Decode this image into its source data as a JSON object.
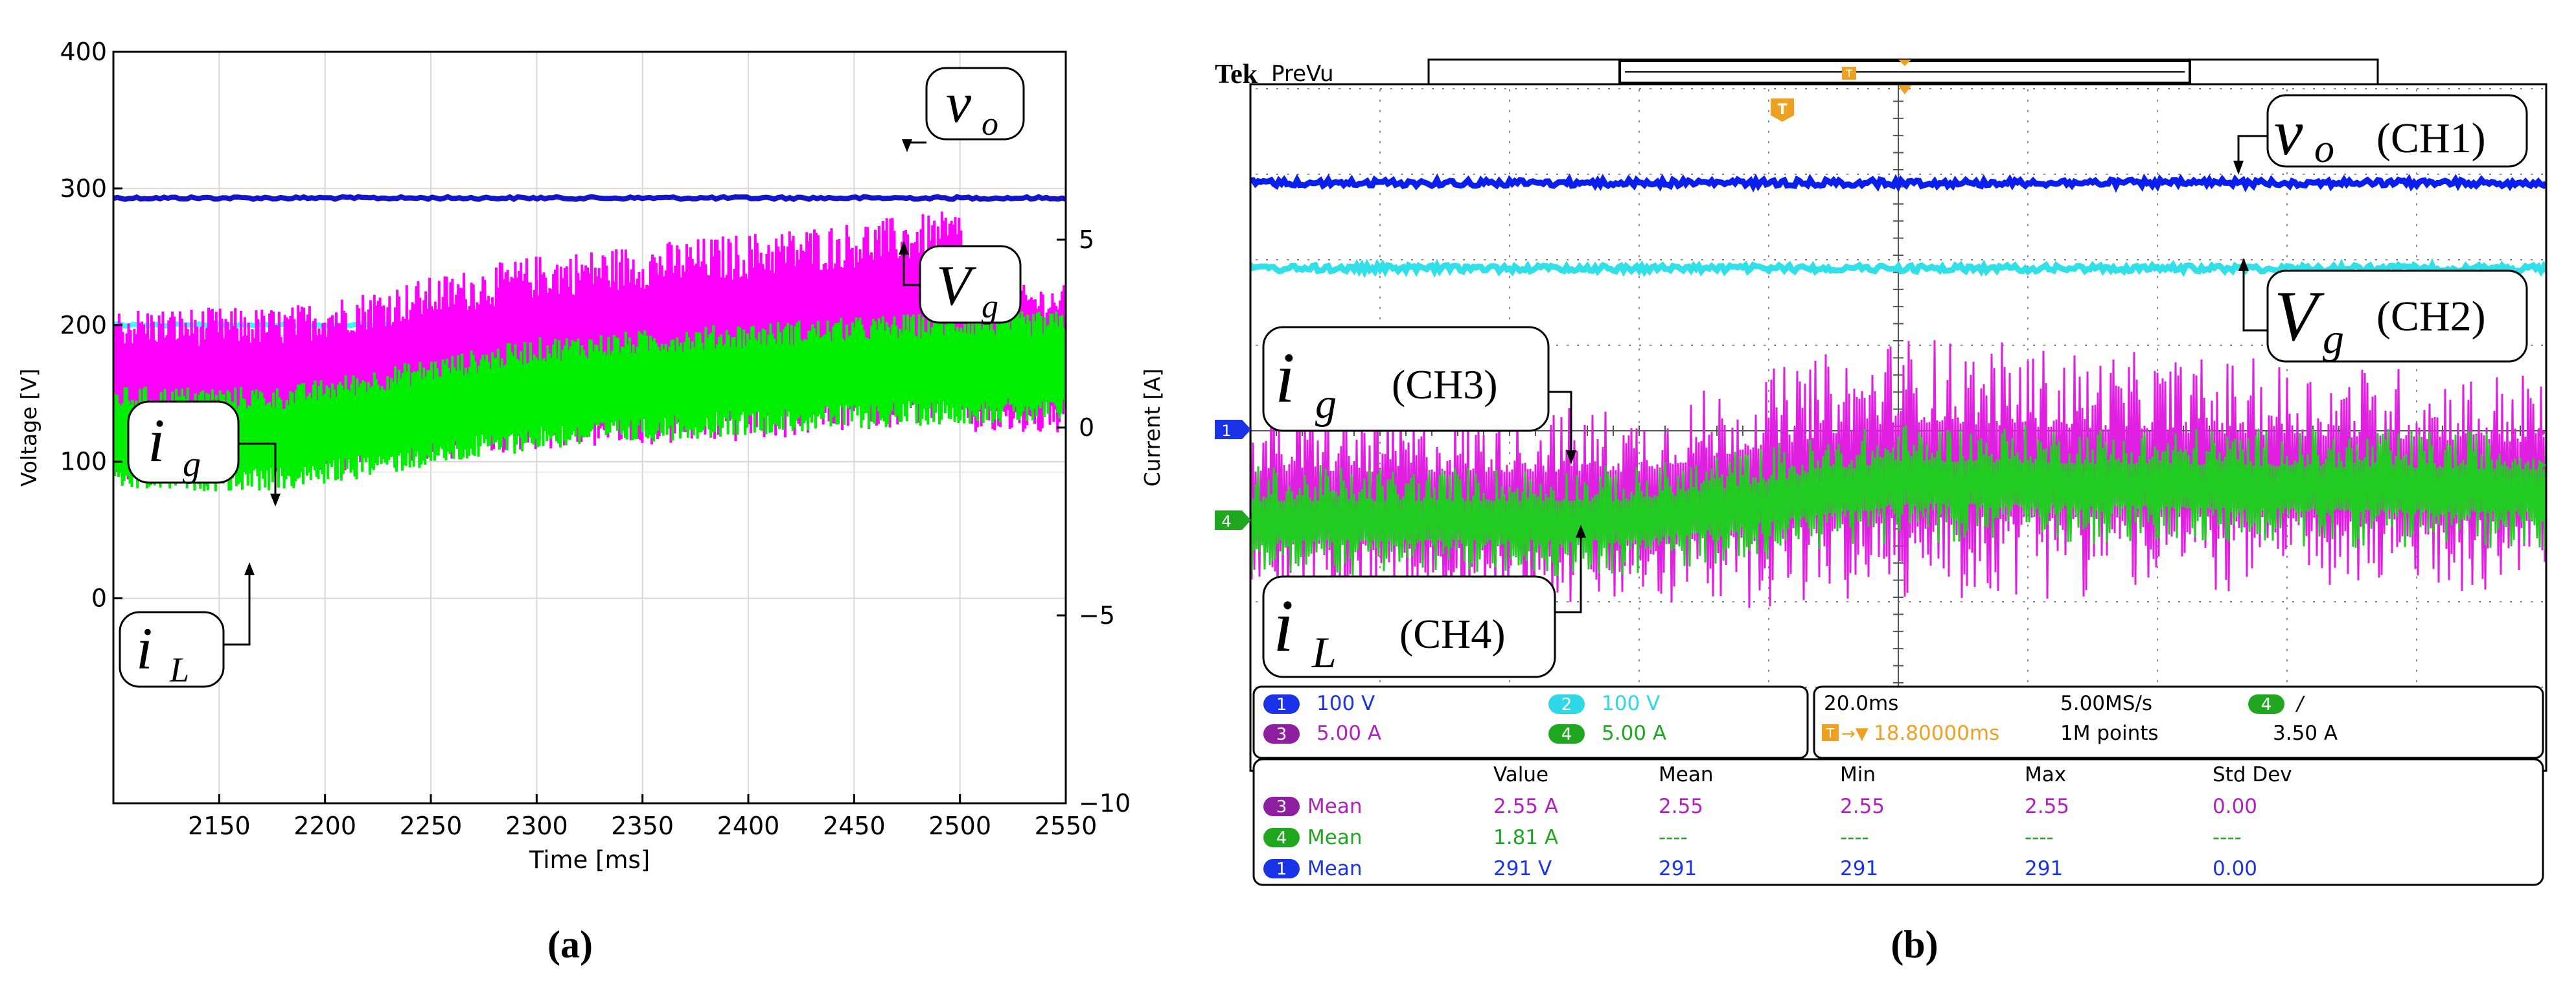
{
  "figure": {
    "label_a": "(a)",
    "label_b": "(b)"
  },
  "chart_data": [
    {
      "type": "line",
      "panel": "a",
      "xlabel": "Time [ms]",
      "ylabel": "Voltage [V]",
      "ylabel_right": "Current [A]",
      "xlim": [
        2100,
        2550
      ],
      "ylim": [
        -150,
        400
      ],
      "ylim_right": [
        -10,
        10
      ],
      "xticks": [
        2150,
        2200,
        2250,
        2300,
        2350,
        2400,
        2450,
        2500,
        2550
      ],
      "yticks": [
        0,
        100,
        200,
        300,
        400
      ],
      "yticks_right": [
        -10,
        -5,
        0,
        5
      ],
      "grid": true,
      "series": [
        {
          "name": "vo",
          "color": "#1414c8",
          "axis": "left",
          "x": [
            2100,
            2550
          ],
          "values": [
            293,
            293
          ]
        },
        {
          "name": "Vg",
          "color": "#33ffff",
          "axis": "left",
          "x": [
            2100,
            2550
          ],
          "values": [
            200,
            200
          ]
        },
        {
          "name": "ig",
          "color": "#ff00ff",
          "axis": "right",
          "x": [
            2100,
            2180,
            2300,
            2400,
            2500,
            2505,
            2550
          ],
          "center": [
            0.9,
            0.9,
            2.0,
            2.4,
            3.0,
            1.8,
            1.8
          ],
          "spread": [
            2.3,
            2.3,
            2.6,
            2.8,
            2.8,
            2.0,
            2.0
          ]
        },
        {
          "name": "iL",
          "color": "#00ee00",
          "axis": "right",
          "x": [
            2100,
            2180,
            2300,
            2400,
            2500,
            2550
          ],
          "center": [
            -0.3,
            -0.3,
            0.9,
            1.3,
            1.6,
            1.6
          ],
          "spread": [
            1.4,
            1.4,
            1.5,
            1.5,
            1.5,
            1.5
          ]
        }
      ],
      "annotations": [
        {
          "var": "v",
          "sub": "o"
        },
        {
          "var": "V",
          "sub": "g"
        },
        {
          "var": "i",
          "sub": "g"
        },
        {
          "var": "i",
          "sub": "L"
        }
      ]
    },
    {
      "type": "line",
      "panel": "b",
      "title": "Tek PreVu",
      "brand": "Tek",
      "mode": "PreVu",
      "divisions_x": 10,
      "divisions_y": 8,
      "ylim": [
        -4,
        4
      ],
      "series": [
        {
          "name": "CH1 vo",
          "color": "#0a1eee",
          "level_div": 2.9,
          "spread_div": 0.05
        },
        {
          "name": "CH2 Vg",
          "color": "#30e0e8",
          "level_div": 1.9,
          "spread_div": 0.05
        },
        {
          "name": "CH3 ig",
          "x_div": [
            0,
            3,
            5,
            7,
            10
          ],
          "color": "#e020e0",
          "center_div": [
            -0.9,
            -0.9,
            -0.45,
            -0.5,
            -0.6
          ],
          "spread_div": [
            1.2,
            1.2,
            1.6,
            1.4,
            1.3
          ]
        },
        {
          "name": "CH4 iL",
          "x_div": [
            0,
            3,
            5,
            10
          ],
          "color": "#22cc22",
          "center_div": [
            -1.05,
            -1.05,
            -0.6,
            -0.7
          ],
          "spread_div": [
            0.65,
            0.65,
            0.7,
            0.7
          ]
        }
      ],
      "annotations": [
        {
          "var": "v",
          "sub": "o",
          "ch": "(CH1)"
        },
        {
          "var": "V",
          "sub": "g",
          "ch": "(CH2)"
        },
        {
          "var": "i",
          "sub": "g",
          "ch": "(CH3)"
        },
        {
          "var": "i",
          "sub": "L",
          "ch": "(CH4)"
        }
      ],
      "markers": {
        "ch1": "1",
        "ch4": "4",
        "trigger": "T"
      },
      "channel_settings": [
        {
          "ch": "1",
          "value": "100 V",
          "badge": "#1a33e8",
          "text": "#1a33e8"
        },
        {
          "ch": "2",
          "value": "100 V",
          "badge": "#2fd8e6",
          "text": "#2fd8e6"
        },
        {
          "ch": "3",
          "value": "5.00 A",
          "badge": "#8e1fa0",
          "text": "#b220c0"
        },
        {
          "ch": "4",
          "value": "5.00 A",
          "badge": "#1fa81f",
          "text": "#1fa81f"
        }
      ],
      "timebase": {
        "scale": "20.0ms",
        "rate": "5.00MS/s",
        "trigger_ch": "4",
        "trigger_slope": "/",
        "trigger_pos": "18.80000ms",
        "record": "1M points",
        "trigger_level": "3.50 A"
      },
      "measurements": {
        "headers": [
          "Value",
          "Mean",
          "Min",
          "Max",
          "Std Dev"
        ],
        "rows": [
          {
            "ch": "3",
            "label": "Mean",
            "value": "2.55 A",
            "mean": "2.55",
            "min": "2.55",
            "max": "2.55",
            "std": "0.00",
            "color": "#b220c0",
            "badge": "#8e1fa0"
          },
          {
            "ch": "4",
            "label": "Mean",
            "value": "1.81 A",
            "mean": "----",
            "min": "----",
            "max": "----",
            "std": "----",
            "color": "#1fa81f",
            "badge": "#1fa81f"
          },
          {
            "ch": "1",
            "label": "Mean",
            "value": "291 V",
            "mean": "291",
            "min": "291",
            "max": "291",
            "std": "0.00",
            "color": "#1a33e8",
            "badge": "#1a33e8"
          }
        ]
      }
    }
  ]
}
